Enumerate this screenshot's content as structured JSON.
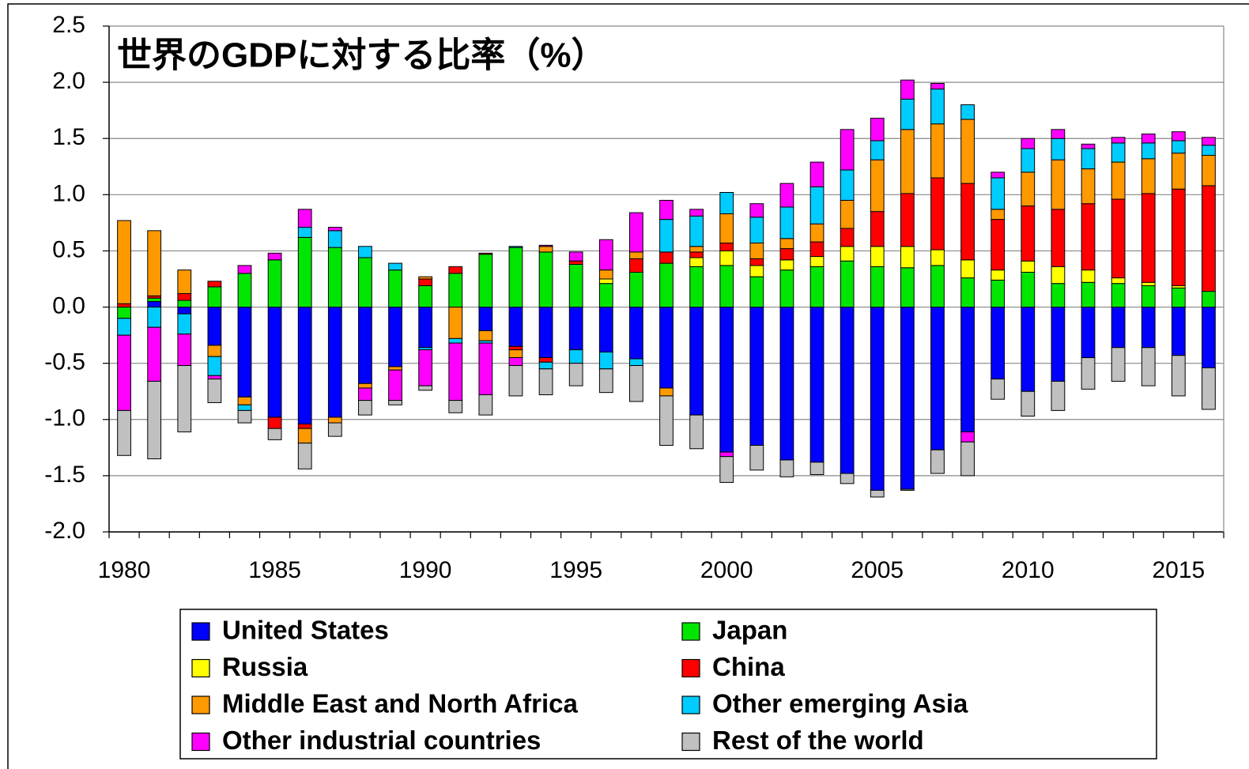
{
  "chart_data": {
    "type": "stacked_bar",
    "title": "世界のGDPに対する比率（%）",
    "categories": [
      "1980",
      null,
      null,
      null,
      null,
      "1985",
      null,
      null,
      null,
      null,
      "1990",
      null,
      null,
      null,
      null,
      "1995",
      null,
      null,
      null,
      null,
      "2000",
      null,
      null,
      null,
      null,
      "2005",
      null,
      null,
      null,
      null,
      "2010",
      null,
      null,
      null,
      null,
      "2015",
      null
    ],
    "series": [
      {
        "name": "United States",
        "color": "#0000ff",
        "values": [
          0,
          0.05,
          -0.06,
          -0.34,
          -0.8,
          -0.98,
          -1.04,
          -0.98,
          -0.68,
          -0.53,
          -0.36,
          0,
          -0.21,
          -0.35,
          -0.45,
          -0.38,
          -0.4,
          -0.46,
          -0.72,
          -0.96,
          -1.29,
          -1.23,
          -1.36,
          -1.38,
          -1.48,
          -1.63,
          -1.62,
          -1.27,
          -1.11,
          -0.64,
          -0.75,
          -0.66,
          -0.45,
          -0.36,
          -0.36,
          -0.43,
          -0.54
        ]
      },
      {
        "name": "Japan",
        "color": "#00e600",
        "values": [
          -0.1,
          0.03,
          0.06,
          0.18,
          0.3,
          0.42,
          0.62,
          0.53,
          0.44,
          0.33,
          0.19,
          0.3,
          0.47,
          0.53,
          0.49,
          0.38,
          0.21,
          0.31,
          0.39,
          0.36,
          0.37,
          0.27,
          0.33,
          0.36,
          0.41,
          0.36,
          0.35,
          0.37,
          0.26,
          0.24,
          0.31,
          0.21,
          0.22,
          0.21,
          0.19,
          0.17,
          0.14
        ]
      },
      {
        "name": "Russia",
        "color": "#ffff00",
        "values": [
          0,
          0,
          0,
          0,
          0,
          0,
          0,
          0,
          0,
          0,
          0,
          0,
          0,
          0,
          0,
          0,
          0.04,
          0,
          0,
          0.08,
          0.13,
          0.1,
          0.09,
          0.09,
          0.13,
          0.18,
          0.19,
          0.14,
          0.16,
          0.09,
          0.1,
          0.15,
          0.11,
          0.05,
          0.03,
          0.02,
          0
        ]
      },
      {
        "name": "China",
        "color": "#ff0000",
        "values": [
          0.03,
          0.02,
          0.06,
          0.05,
          0,
          -0.1,
          -0.04,
          0,
          0,
          0,
          0.06,
          0.06,
          0.01,
          -0.03,
          -0.04,
          0.03,
          0,
          0.12,
          0.1,
          0.05,
          0.07,
          0.06,
          0.1,
          0.13,
          0.16,
          0.31,
          0.47,
          0.64,
          0.68,
          0.45,
          0.49,
          0.51,
          0.59,
          0.7,
          0.79,
          0.86,
          0.94
        ]
      },
      {
        "name": "Middle East and North Africa",
        "color": "#ff9900",
        "values": [
          0.74,
          0.58,
          0.21,
          -0.1,
          -0.07,
          0,
          -0.13,
          -0.05,
          -0.04,
          -0.03,
          0.02,
          -0.28,
          -0.09,
          -0.07,
          0.05,
          0,
          0.08,
          0.06,
          -0.07,
          0.05,
          0.26,
          0.14,
          0.09,
          0.16,
          0.25,
          0.46,
          0.57,
          0.48,
          0.57,
          0.09,
          0.3,
          0.44,
          0.31,
          0.33,
          0.31,
          0.32,
          0.27
        ]
      },
      {
        "name": "Other emerging Asia",
        "color": "#00ccff",
        "values": [
          -0.15,
          -0.18,
          -0.18,
          -0.17,
          -0.05,
          0,
          0.09,
          0.15,
          0.1,
          0.06,
          -0.02,
          -0.04,
          -0.02,
          0.01,
          -0.06,
          -0.12,
          -0.15,
          -0.06,
          0.29,
          0.27,
          0.19,
          0.23,
          0.28,
          0.33,
          0.27,
          0.17,
          0.27,
          0.31,
          0.13,
          0.28,
          0.21,
          0.19,
          0.18,
          0.17,
          0.14,
          0.11,
          0.09
        ]
      },
      {
        "name": "Other industrial countries",
        "color": "#ff00ff",
        "values": [
          -0.67,
          -0.48,
          -0.28,
          -0.03,
          0.07,
          0.06,
          0.16,
          0.03,
          -0.11,
          -0.27,
          -0.32,
          -0.51,
          -0.46,
          -0.07,
          0.01,
          0.08,
          0.27,
          0.35,
          0.17,
          0.06,
          -0.04,
          0.12,
          0.21,
          0.22,
          0.36,
          0.2,
          0.17,
          0.05,
          -0.09,
          0.05,
          0.09,
          0.08,
          0.04,
          0.05,
          0.08,
          0.08,
          0.07
        ]
      },
      {
        "name": "Rest of the world",
        "color": "#c0c0c0",
        "values": [
          -0.4,
          -0.69,
          -0.59,
          -0.21,
          -0.11,
          -0.1,
          -0.23,
          -0.12,
          -0.13,
          -0.04,
          -0.04,
          -0.11,
          -0.18,
          -0.27,
          -0.23,
          -0.2,
          -0.21,
          -0.32,
          -0.44,
          -0.3,
          -0.23,
          -0.22,
          -0.15,
          -0.11,
          -0.09,
          -0.06,
          -0.01,
          -0.21,
          -0.3,
          -0.18,
          -0.22,
          -0.26,
          -0.28,
          -0.3,
          -0.34,
          -0.36,
          -0.37
        ]
      }
    ],
    "ylim": [
      -2.0,
      2.5
    ],
    "yticks": [
      {
        "value": -2.0,
        "label": "-2.0"
      },
      -1.5,
      {
        "value": -1.0,
        "label": "-1.0"
      },
      -0.5,
      {
        "value": 0.0,
        "label": "0.0"
      },
      0.5,
      {
        "value": 1.0,
        "label": "1.0"
      },
      1.5,
      {
        "value": 2.0,
        "label": "2.0"
      },
      2.5
    ],
    "grid": true,
    "legend": "bottom"
  }
}
